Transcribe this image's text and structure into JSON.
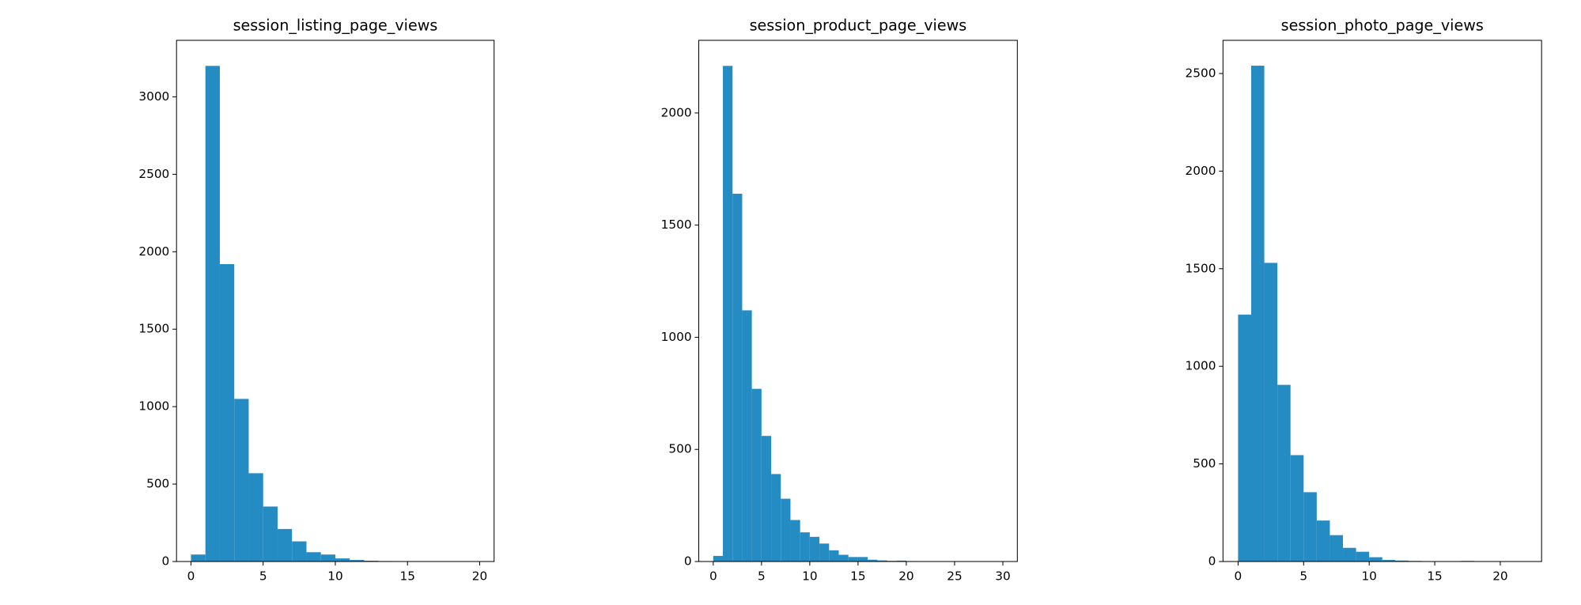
{
  "chart_data": [
    {
      "type": "histogram",
      "title": "session_listing_page_views",
      "color": "#258bc3",
      "bins": [
        0,
        1,
        2,
        3,
        4,
        5,
        6,
        7,
        8,
        9,
        10,
        11,
        12,
        13,
        14,
        15,
        16,
        17,
        18,
        19,
        20
      ],
      "values": [
        45,
        3200,
        1920,
        1050,
        570,
        355,
        210,
        130,
        60,
        45,
        20,
        10,
        5,
        3,
        2,
        1,
        1,
        1,
        0,
        1
      ],
      "xlim": [
        -1,
        21
      ],
      "ylim": [
        0,
        3365
      ],
      "xticks": [
        0,
        5,
        10,
        15,
        20
      ],
      "yticks": [
        0,
        500,
        1000,
        1500,
        2000,
        2500,
        3000
      ]
    },
    {
      "type": "histogram",
      "title": "session_product_page_views",
      "color": "#258bc3",
      "bins": [
        0,
        1,
        2,
        3,
        4,
        5,
        6,
        7,
        8,
        9,
        10,
        11,
        12,
        13,
        14,
        15,
        16,
        17,
        18,
        19,
        20,
        21,
        22,
        23,
        24,
        25,
        26,
        27,
        28,
        29,
        30
      ],
      "values": [
        25,
        2210,
        1640,
        1120,
        770,
        560,
        390,
        280,
        185,
        130,
        110,
        80,
        50,
        30,
        20,
        20,
        8,
        5,
        3,
        4,
        2,
        1,
        1,
        1,
        0,
        0,
        1,
        0,
        0,
        1
      ],
      "xlim": [
        -1.5,
        31.5
      ],
      "ylim": [
        0,
        2324
      ],
      "xticks": [
        0,
        5,
        10,
        15,
        20,
        25,
        30
      ],
      "yticks": [
        0,
        500,
        1000,
        1500,
        2000
      ]
    },
    {
      "type": "histogram",
      "title": "session_photo_page_views",
      "color": "#258bc3",
      "bins": [
        0,
        1,
        2,
        3,
        4,
        5,
        6,
        7,
        8,
        9,
        10,
        11,
        12,
        13,
        14,
        15,
        16,
        17,
        18,
        19,
        20,
        21,
        22
      ],
      "values": [
        1265,
        2540,
        1530,
        905,
        545,
        355,
        210,
        135,
        70,
        50,
        22,
        8,
        5,
        3,
        1,
        1,
        0,
        3,
        1,
        0,
        0,
        1
      ],
      "xlim": [
        -1.15,
        23.15
      ],
      "ylim": [
        0,
        2670
      ],
      "xticks": [
        0,
        5,
        10,
        15,
        20
      ],
      "yticks": [
        0,
        500,
        1000,
        1500,
        2000,
        2500
      ]
    }
  ]
}
